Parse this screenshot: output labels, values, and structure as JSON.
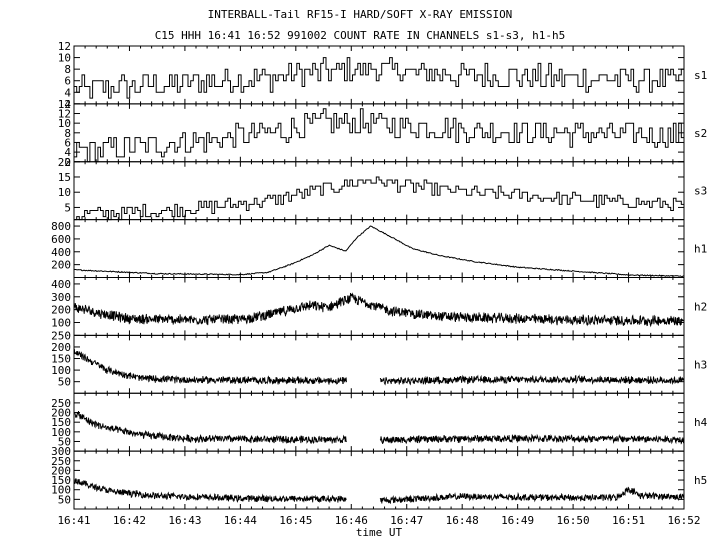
{
  "title": "INTERBALL-Tail RF15-I HARD/SOFT X-RAY EMISSION",
  "subtitle": "C15 HHH 16:41 16:52 991002  COUNT RATE IN CHANNELS s1-s3, h1-h5",
  "colors": {
    "line": "#000000",
    "background": "#ffffff"
  },
  "chart_data": {
    "type": "line",
    "title": "INTERBALL-Tail RF15-I HARD/SOFT X-RAY EMISSION",
    "subtitle": "C15 HHH 16:41 16:52 991002  COUNT RATE IN CHANNELS s1-s3, h1-h5",
    "xlabel": "time UT",
    "x_ticks": [
      "16:41",
      "16:42",
      "16:43",
      "16:44",
      "16:45",
      "16:46",
      "16:47",
      "16:48",
      "16:49",
      "16:50",
      "16:51",
      "16:52"
    ],
    "xlim": [
      "16:41",
      "16:52"
    ],
    "grid": false,
    "panels": [
      {
        "name": "s1",
        "ylim": [
          2,
          12
        ],
        "yticks": [
          "2",
          "4",
          "6",
          "8",
          "10",
          "12"
        ],
        "style": "step",
        "gap": null,
        "profile": [
          [
            0,
            4.5
          ],
          [
            2,
            5.5
          ],
          [
            3.5,
            6.5
          ],
          [
            4.5,
            7.5
          ],
          [
            5.5,
            8
          ],
          [
            7,
            7
          ],
          [
            8.5,
            6.5
          ],
          [
            11,
            6
          ]
        ],
        "noise": 2.2
      },
      {
        "name": "s2",
        "ylim": [
          2,
          14
        ],
        "yticks": [
          "2",
          "4",
          "6",
          "8",
          "10",
          "12",
          "14"
        ],
        "style": "step",
        "gap": null,
        "profile": [
          [
            0,
            4
          ],
          [
            2,
            6
          ],
          [
            3.5,
            8
          ],
          [
            4.5,
            10
          ],
          [
            5.5,
            10
          ],
          [
            7,
            8.5
          ],
          [
            8.5,
            8
          ],
          [
            11,
            7.5
          ]
        ],
        "noise": 2.6
      },
      {
        "name": "s3",
        "ylim": [
          1,
          20
        ],
        "yticks": [
          "5",
          "10",
          "15",
          "20"
        ],
        "style": "step",
        "gap": null,
        "profile": [
          [
            0,
            2.5
          ],
          [
            2,
            4.5
          ],
          [
            3.5,
            7
          ],
          [
            4.5,
            11
          ],
          [
            5.3,
            14
          ],
          [
            6.5,
            11
          ],
          [
            8,
            9
          ],
          [
            9.5,
            7
          ],
          [
            11,
            6
          ]
        ],
        "noise": 2.2
      },
      {
        "name": "h1",
        "ylim": [
          0,
          900
        ],
        "yticks": [
          "200",
          "400",
          "600",
          "800"
        ],
        "style": "smooth",
        "gap": null,
        "profile": [
          [
            0,
            120
          ],
          [
            1.5,
            60
          ],
          [
            3,
            45
          ],
          [
            3.5,
            80
          ],
          [
            3.9,
            200
          ],
          [
            4.3,
            350
          ],
          [
            4.6,
            500
          ],
          [
            4.9,
            410
          ],
          [
            5.1,
            620
          ],
          [
            5.35,
            800
          ],
          [
            5.7,
            640
          ],
          [
            6.1,
            450
          ],
          [
            6.6,
            340
          ],
          [
            7.2,
            250
          ],
          [
            8,
            160
          ],
          [
            9,
            100
          ],
          [
            10,
            40
          ],
          [
            11,
            20
          ]
        ],
        "noise": 8
      },
      {
        "name": "h2",
        "ylim": [
          0,
          450
        ],
        "yticks": [
          "100",
          "200",
          "300",
          "400"
        ],
        "style": "dense",
        "gap": null,
        "profile": [
          [
            0,
            220
          ],
          [
            0.5,
            170
          ],
          [
            1,
            130
          ],
          [
            2,
            120
          ],
          [
            3,
            125
          ],
          [
            3.5,
            160
          ],
          [
            4.2,
            230
          ],
          [
            4.6,
            220
          ],
          [
            5,
            290
          ],
          [
            5.3,
            250
          ],
          [
            5.7,
            190
          ],
          [
            6.5,
            150
          ],
          [
            7,
            140
          ],
          [
            8,
            130
          ],
          [
            9,
            120
          ],
          [
            10,
            115
          ],
          [
            11,
            115
          ]
        ],
        "noise": 45
      },
      {
        "name": "h3",
        "ylim": [
          0,
          250
        ],
        "yticks": [
          "50",
          "100",
          "150",
          "200",
          "250"
        ],
        "style": "dense",
        "gap": [
          4.92,
          5.52
        ],
        "profile": [
          [
            0,
            180
          ],
          [
            0.3,
            140
          ],
          [
            0.6,
            100
          ],
          [
            1.2,
            65
          ],
          [
            2,
            58
          ],
          [
            4,
            55
          ],
          [
            5.6,
            52
          ],
          [
            7,
            58
          ],
          [
            9,
            60
          ],
          [
            11,
            55
          ]
        ],
        "noise": 18
      },
      {
        "name": "h4",
        "ylim": [
          0,
          300
        ],
        "yticks": [
          "50",
          "100",
          "150",
          "200",
          "250"
        ],
        "style": "dense",
        "gap": [
          4.92,
          5.52
        ],
        "profile": [
          [
            0,
            200
          ],
          [
            0.3,
            150
          ],
          [
            0.6,
            120
          ],
          [
            1.2,
            85
          ],
          [
            2,
            65
          ],
          [
            4,
            60
          ],
          [
            5.6,
            58
          ],
          [
            7,
            65
          ],
          [
            9,
            65
          ],
          [
            11,
            60
          ]
        ],
        "noise": 22
      },
      {
        "name": "h5",
        "ylim": [
          0,
          300
        ],
        "yticks": [
          "50",
          "100",
          "150",
          "200",
          "250",
          "300"
        ],
        "style": "dense",
        "gap": [
          4.92,
          5.52
        ],
        "profile": [
          [
            0,
            150
          ],
          [
            0.3,
            120
          ],
          [
            0.7,
            90
          ],
          [
            1.5,
            68
          ],
          [
            3,
            55
          ],
          [
            4.9,
            52
          ],
          [
            5.6,
            45
          ],
          [
            7,
            65
          ],
          [
            9,
            58
          ],
          [
            9.8,
            60
          ],
          [
            10,
            105
          ],
          [
            10.2,
            70
          ],
          [
            11,
            62
          ]
        ],
        "noise": 20
      }
    ]
  }
}
